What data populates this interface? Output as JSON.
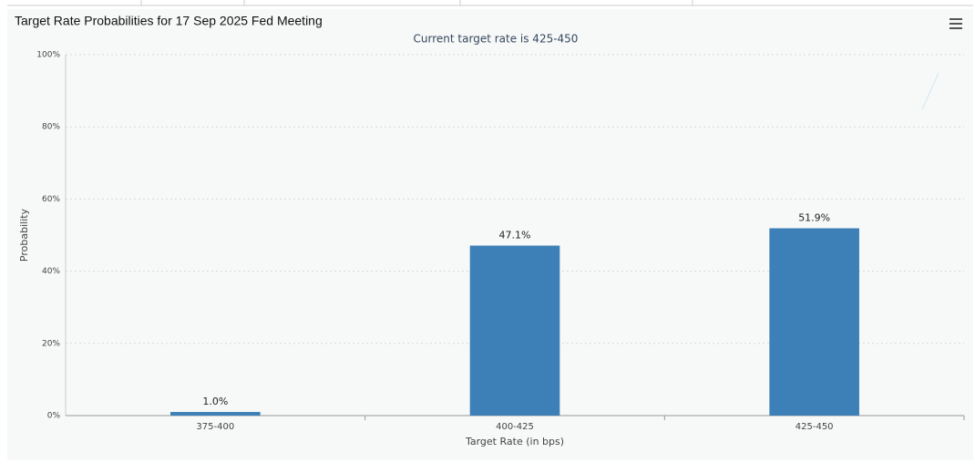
{
  "chart_data": {
    "type": "bar",
    "title": "Target Rate Probabilities for 17 Sep 2025 Fed Meeting",
    "subtitle": "Current target rate is 425-450",
    "x_label": "Target Rate (in bps)",
    "y_label": "Probability",
    "categories": [
      "375-400",
      "400-425",
      "425-450"
    ],
    "values": [
      1.0,
      47.1,
      51.9
    ],
    "value_labels": [
      "1.0%",
      "47.1%",
      "51.9%"
    ],
    "color": "#3d80b8",
    "ylim": [
      0,
      100
    ],
    "yticks": [
      {
        "value": 0,
        "label": "0%"
      },
      {
        "value": 20,
        "label": "20%"
      },
      {
        "value": 40,
        "label": "40%"
      },
      {
        "value": 60,
        "label": "60%"
      },
      {
        "value": 80,
        "label": "80%"
      },
      {
        "value": 100,
        "label": "100%"
      }
    ],
    "grid": true
  }
}
